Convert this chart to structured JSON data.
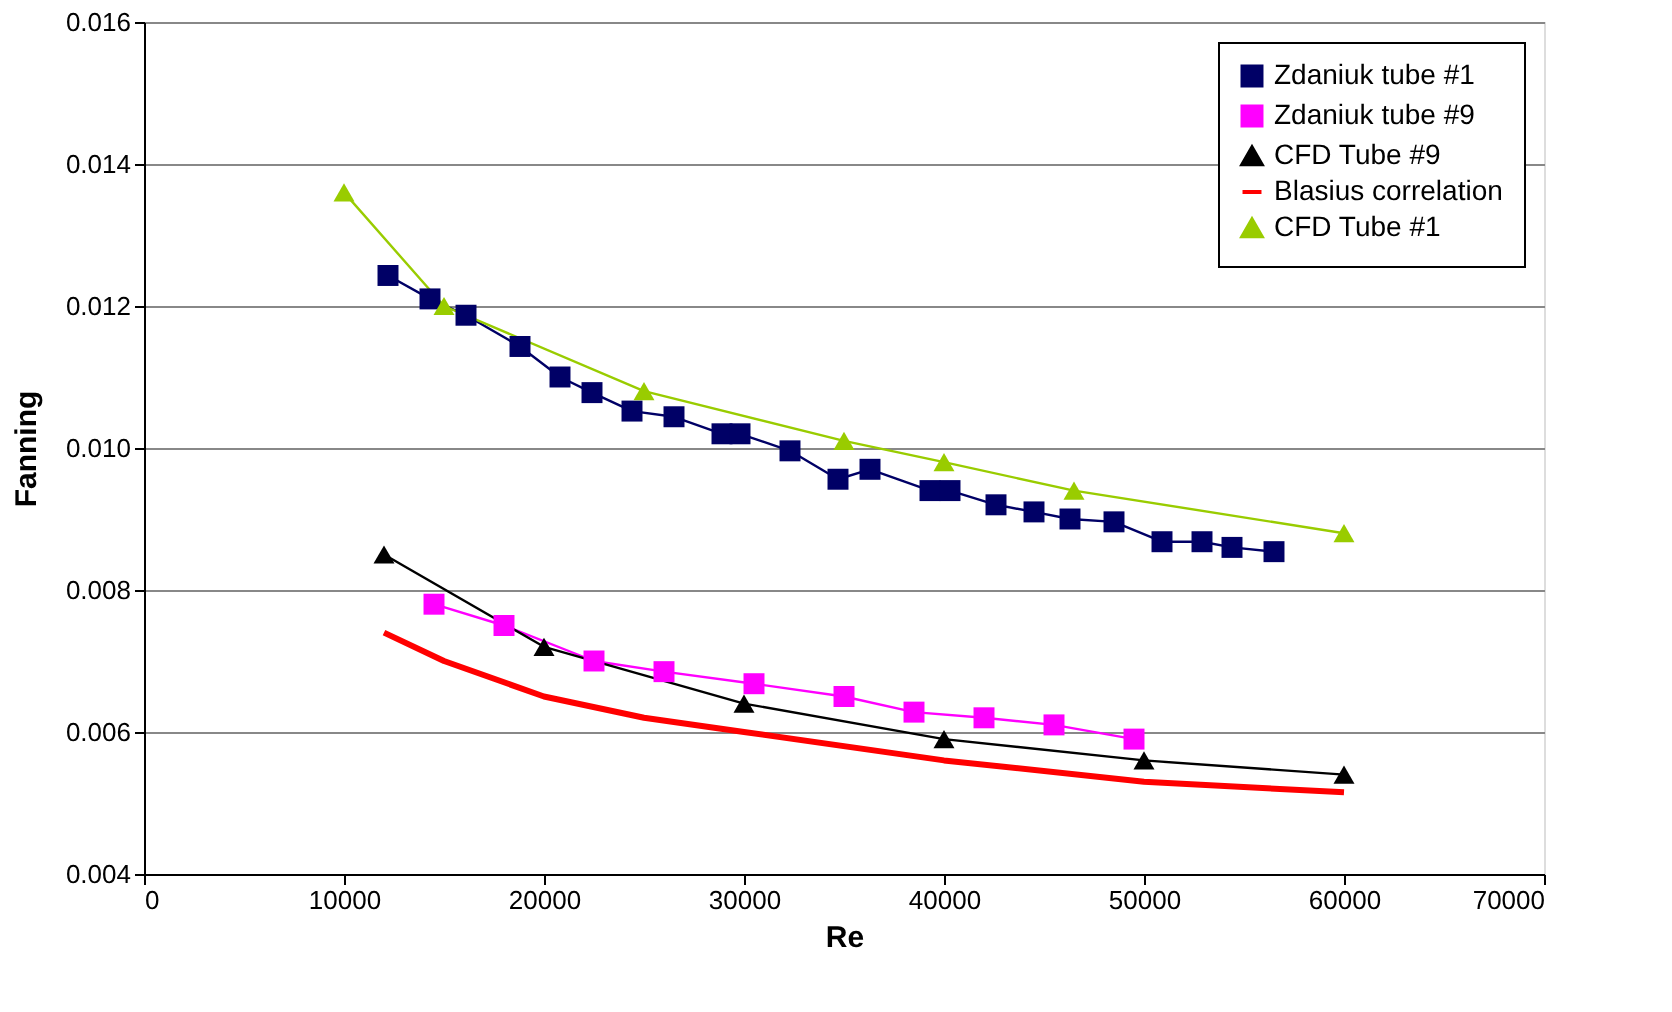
{
  "chart_data": {
    "type": "line",
    "xlabel": "Re",
    "ylabel": "Fanning",
    "xlim": [
      0,
      70000
    ],
    "xticks": [
      0,
      10000,
      20000,
      30000,
      40000,
      50000,
      60000,
      70000
    ],
    "ylim": [
      0.004,
      0.016
    ],
    "yticks": [
      0.004,
      0.006,
      0.008,
      {
        "value": 0.01,
        "label": "0.010"
      },
      0.012,
      0.014,
      0.016
    ],
    "grid": "y",
    "legend": "top right",
    "series": [
      {
        "name": "Zdaniuk tube #1",
        "color": "#000066",
        "marker": "square",
        "x": [
          12200,
          14300,
          16100,
          18800,
          20800,
          22400,
          24400,
          26500,
          28900,
          29800,
          32300,
          34700,
          36300,
          39300,
          40300,
          42600,
          44500,
          46300,
          48500,
          50900,
          52900,
          54400,
          56500
        ],
        "values": [
          0.01243,
          0.0121,
          0.01187,
          0.01143,
          0.011,
          0.01078,
          0.01052,
          0.01044,
          0.0102,
          0.0102,
          0.00996,
          0.00956,
          0.0097,
          0.0094,
          0.0094,
          0.0092,
          0.0091,
          0.009,
          0.00896,
          0.00868,
          0.00868,
          0.0086,
          0.00854
        ]
      },
      {
        "name": "Zdaniuk tube #9",
        "color": "#ff00ff",
        "marker": "square",
        "x": [
          14500,
          18000,
          22500,
          26000,
          30500,
          35000,
          38500,
          42000,
          45500,
          49500
        ],
        "values": [
          0.0078,
          0.0075,
          0.007,
          0.00685,
          0.00668,
          0.0065,
          0.00628,
          0.0062,
          0.0061,
          0.0059
        ]
      },
      {
        "name": "CFD Tube #9",
        "color": "#000000",
        "marker": "triangle",
        "x": [
          12000,
          20000,
          30000,
          40000,
          50000,
          60000
        ],
        "values": [
          0.0085,
          0.0072,
          0.0064,
          0.0059,
          0.0056,
          0.0054
        ]
      },
      {
        "name": "Blasius correlation",
        "color": "#ff0000",
        "marker": "none",
        "x": [
          12000,
          15000,
          20000,
          25000,
          30000,
          40000,
          50000,
          60000
        ],
        "values": [
          0.0074,
          0.007,
          0.0065,
          0.0062,
          0.006,
          0.0056,
          0.0053,
          0.00515
        ]
      },
      {
        "name": "CFD Tube #1",
        "color": "#99cc00",
        "marker": "triangle",
        "x": [
          10000,
          15000,
          25000,
          35000,
          40000,
          46500,
          60000
        ],
        "values": [
          0.0136,
          0.012,
          0.0108,
          0.0101,
          0.0098,
          0.0094,
          0.0088
        ]
      }
    ]
  }
}
